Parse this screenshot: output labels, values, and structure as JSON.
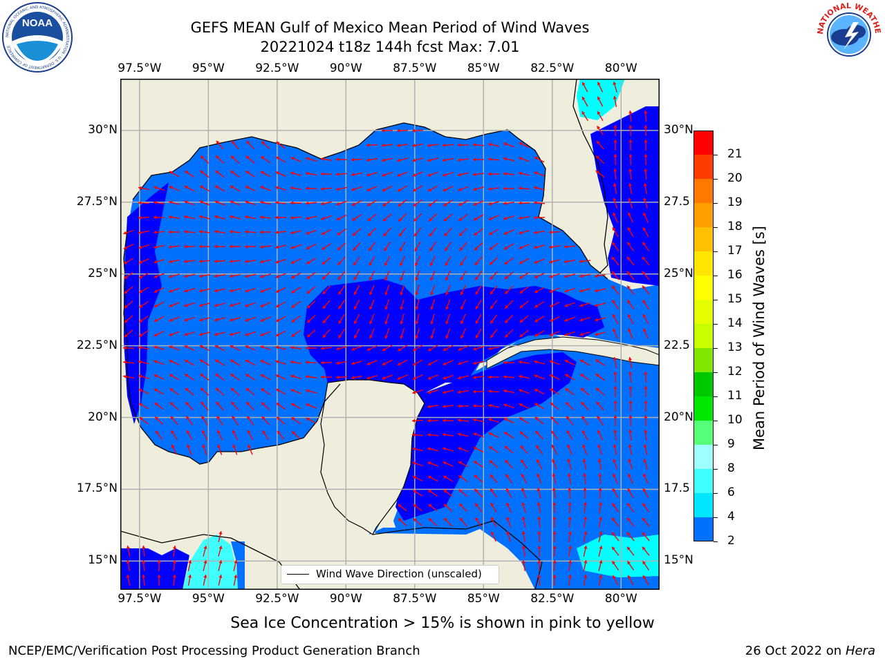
{
  "header": {
    "title_line1": "GEFS MEAN Gulf of Mexico Mean Period of Wind Waves",
    "title_line2": "20221024 t18z 144h fcst   Max: 7.01"
  },
  "logos": {
    "left": "NOAA",
    "left_ring_text": "NATIONAL OCEANIC AND ATMOSPHERIC ADMINISTRATION · U.S. DEPARTMENT OF COMMERCE",
    "right_ring_text": "NATIONAL WEATHER SERVICE"
  },
  "map": {
    "lon_labels": [
      "97.5°W",
      "95°W",
      "92.5°W",
      "90°W",
      "87.5°W",
      "85°W",
      "82.5°W",
      "80°W"
    ],
    "lat_labels_left": [
      "30°N",
      "27.5°N",
      "25°N",
      "22.5°N",
      "20°N",
      "17.5°N",
      "15°N"
    ],
    "lat_labels_right": [
      "30°N",
      "27.5",
      "25°N",
      "22.5",
      "20°N",
      "17.5",
      "15°N"
    ],
    "lon_range": [
      -98.2,
      -78.6
    ],
    "lat_range": [
      14.0,
      31.8
    ],
    "land_color": "#efeedd",
    "ocean_colors": {
      "2-4": "#0070ff",
      "0-2": "#0000ff",
      "4-6": "#00ffff",
      "6-8": "#40ffff"
    },
    "arrow_color": "#ff0000",
    "grid": true
  },
  "legend": {
    "label": "Wind Wave Direction (unscaled)"
  },
  "colorbar": {
    "label": "Mean Period of Wind Waves [s]",
    "ticks": [
      "2",
      "4",
      "6",
      "8",
      "9",
      "10",
      "11",
      "12",
      "13",
      "14",
      "15",
      "16",
      "17",
      "18",
      "19",
      "20",
      "21"
    ],
    "colors": [
      "#0070ff",
      "#00e6ff",
      "#40ffff",
      "#a0ffff",
      "#55ff77",
      "#00e600",
      "#00c800",
      "#80e600",
      "#c8ff00",
      "#e6ff00",
      "#ffff00",
      "#ffe600",
      "#ffc000",
      "#ffa000",
      "#ff7800",
      "#ff3c00",
      "#ff0000"
    ],
    "extend_color": "#0000ff"
  },
  "footer": {
    "sea_ice_note": "Sea Ice Concentration > 15% is shown in pink to yellow",
    "branch": "NCEP/EMC/Verification Post Processing Product Generation Branch",
    "date": "26 Oct 2022 on ",
    "machine": "Hera"
  }
}
